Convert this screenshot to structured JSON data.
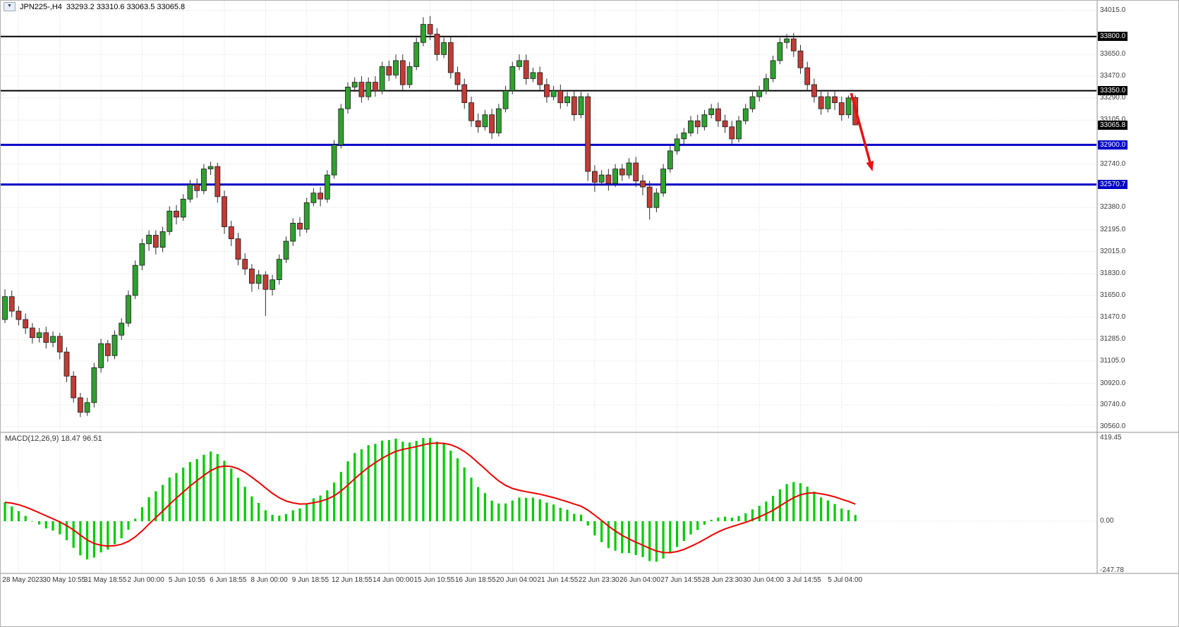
{
  "header": {
    "symbol": "JPN225-,H4",
    "ohlc": "33293.2 33310.6 33063.5 33065.8",
    "dropdown_icon": "▼"
  },
  "colors": {
    "bull": "#2EA12E",
    "bear": "#C23B35",
    "wick": "#2b2b2b",
    "body_stroke": "#1a1a1a",
    "grid": "#d9d9d9",
    "hline_black": "#000000",
    "hline_blue": "#0000C8",
    "macd_hist": "#00CC00",
    "macd_signal": "#F00000",
    "arrow": "#E81010",
    "axis_text": "#3c3c3c",
    "separator": "#8f8f8f"
  },
  "chart_data": [
    {
      "type": "candlestick",
      "symbol": "JPN225",
      "timeframe": "H4",
      "last_ohlc": {
        "open": 33293.2,
        "high": 33310.6,
        "low": 33063.5,
        "close": 33065.8
      },
      "ylim": [
        30560,
        34015
      ],
      "y_ticks": [
        "34015.0",
        "33650.0",
        "33470.0",
        "33290.0",
        "33105.0",
        "32740.0",
        "32380.0",
        "32195.0",
        "32015.0",
        "31830.0",
        "31650.0",
        "31470.0",
        "31285.0",
        "31105.0",
        "30920.0",
        "30740.0",
        "30560.0"
      ],
      "price_tags": [
        {
          "label": "33800.0",
          "value": 33800.0,
          "style": "black"
        },
        {
          "label": "33350.0",
          "value": 33350.0,
          "style": "black"
        },
        {
          "label": "33065.8",
          "value": 33065.8,
          "style": "black"
        },
        {
          "label": "32900.0",
          "value": 32900.0,
          "style": "blue"
        },
        {
          "label": "32570.7",
          "value": 32570.7,
          "style": "blue"
        }
      ],
      "hlines": [
        {
          "value": 33800.0,
          "color": "black",
          "width": 2
        },
        {
          "value": 33350.0,
          "color": "black",
          "width": 2
        },
        {
          "value": 32900.0,
          "color": "blue",
          "width": 3
        },
        {
          "value": 32570.7,
          "color": "blue",
          "width": 3
        }
      ],
      "x_labels": [
        {
          "bar": 2,
          "text": "28 May 2023"
        },
        {
          "bar": 8,
          "text": "30 May 10:55"
        },
        {
          "bar": 14,
          "text": "31 May 18:55"
        },
        {
          "bar": 20,
          "text": "2 Jun 00:00"
        },
        {
          "bar": 26,
          "text": "5 Jun 10:55"
        },
        {
          "bar": 32,
          "text": "6 Jun 18:55"
        },
        {
          "bar": 38,
          "text": "8 Jun 00:00"
        },
        {
          "bar": 44,
          "text": "9 Jun 18:55"
        },
        {
          "bar": 50,
          "text": "12 Jun 18:55"
        },
        {
          "bar": 56,
          "text": "14 Jun 00:00"
        },
        {
          "bar": 62,
          "text": "15 Jun 10:55"
        },
        {
          "bar": 68,
          "text": "16 Jun 18:55"
        },
        {
          "bar": 74,
          "text": "20 Jun 04:00"
        },
        {
          "bar": 80,
          "text": "21 Jun 14:55"
        },
        {
          "bar": 86,
          "text": "22 Jun 23:30"
        },
        {
          "bar": 92,
          "text": "26 Jun 04:00"
        },
        {
          "bar": 98,
          "text": "27 Jun 14:55"
        },
        {
          "bar": 104,
          "text": "28 Jun 23:30"
        },
        {
          "bar": 110,
          "text": "30 Jun 04:00"
        },
        {
          "bar": 116,
          "text": "3 Jul 14:55"
        },
        {
          "bar": 122,
          "text": "5 Jul 04:00"
        }
      ],
      "arrow": {
        "from_bar": 123.4,
        "from_price": 33330,
        "to_bar": 126.5,
        "to_price": 32680
      },
      "candles": [
        [
          31450,
          31700,
          31420,
          31640
        ],
        [
          31640,
          31690,
          31470,
          31520
        ],
        [
          31520,
          31560,
          31400,
          31450
        ],
        [
          31450,
          31500,
          31330,
          31380
        ],
        [
          31380,
          31420,
          31250,
          31300
        ],
        [
          31300,
          31380,
          31260,
          31340
        ],
        [
          31340,
          31390,
          31210,
          31260
        ],
        [
          31260,
          31350,
          31220,
          31310
        ],
        [
          31310,
          31340,
          31120,
          31180
        ],
        [
          31180,
          31220,
          30930,
          30980
        ],
        [
          30980,
          31020,
          30760,
          30800
        ],
        [
          30800,
          30840,
          30640,
          30680
        ],
        [
          30680,
          30800,
          30650,
          30760
        ],
        [
          30760,
          31090,
          30720,
          31050
        ],
        [
          31050,
          31290,
          31010,
          31250
        ],
        [
          31250,
          31280,
          31100,
          31150
        ],
        [
          31150,
          31360,
          31120,
          31320
        ],
        [
          31320,
          31460,
          31280,
          31420
        ],
        [
          31420,
          31690,
          31390,
          31650
        ],
        [
          31650,
          31940,
          31620,
          31900
        ],
        [
          31900,
          32120,
          31860,
          32080
        ],
        [
          32080,
          32190,
          32020,
          32150
        ],
        [
          32150,
          32190,
          31990,
          32050
        ],
        [
          32050,
          32220,
          32010,
          32180
        ],
        [
          32180,
          32390,
          32150,
          32350
        ],
        [
          32350,
          32400,
          32240,
          32300
        ],
        [
          32300,
          32490,
          32270,
          32450
        ],
        [
          32450,
          32610,
          32420,
          32570
        ],
        [
          32570,
          32620,
          32460,
          32520
        ],
        [
          32520,
          32740,
          32490,
          32700
        ],
        [
          32700,
          32760,
          32650,
          32720
        ],
        [
          32720,
          32750,
          32420,
          32470
        ],
        [
          32470,
          32520,
          32160,
          32220
        ],
        [
          32220,
          32270,
          32060,
          32120
        ],
        [
          32120,
          32170,
          31900,
          31950
        ],
        [
          31950,
          32000,
          31820,
          31870
        ],
        [
          31870,
          31910,
          31680,
          31750
        ],
        [
          31750,
          31860,
          31700,
          31820
        ],
        [
          31820,
          31850,
          31480,
          31700
        ],
        [
          31700,
          31820,
          31650,
          31780
        ],
        [
          31780,
          31990,
          31740,
          31950
        ],
        [
          31950,
          32140,
          31920,
          32100
        ],
        [
          32100,
          32290,
          32060,
          32250
        ],
        [
          32250,
          32300,
          32140,
          32200
        ],
        [
          32200,
          32460,
          32170,
          32420
        ],
        [
          32420,
          32540,
          32390,
          32500
        ],
        [
          32500,
          32550,
          32390,
          32450
        ],
        [
          32450,
          32690,
          32420,
          32650
        ],
        [
          32650,
          32940,
          32620,
          32900
        ],
        [
          32900,
          33240,
          32870,
          33200
        ],
        [
          33200,
          33420,
          33160,
          33380
        ],
        [
          33380,
          33460,
          33340,
          33420
        ],
        [
          33420,
          33470,
          33250,
          33300
        ],
        [
          33300,
          33460,
          33270,
          33420
        ],
        [
          33420,
          33470,
          33300,
          33350
        ],
        [
          33350,
          33590,
          33320,
          33550
        ],
        [
          33550,
          33600,
          33430,
          33480
        ],
        [
          33480,
          33650,
          33450,
          33600
        ],
        [
          33600,
          33650,
          33350,
          33400
        ],
        [
          33400,
          33590,
          33370,
          33550
        ],
        [
          33550,
          33790,
          33520,
          33750
        ],
        [
          33750,
          33960,
          33720,
          33900
        ],
        [
          33900,
          33970,
          33770,
          33820
        ],
        [
          33820,
          33870,
          33600,
          33650
        ],
        [
          33650,
          33790,
          33620,
          33750
        ],
        [
          33750,
          33800,
          33450,
          33500
        ],
        [
          33500,
          33550,
          33350,
          33400
        ],
        [
          33400,
          33450,
          33200,
          33250
        ],
        [
          33250,
          33300,
          33050,
          33100
        ],
        [
          33100,
          33160,
          33000,
          33050
        ],
        [
          33050,
          33190,
          33020,
          33150
        ],
        [
          33150,
          33200,
          32950,
          33000
        ],
        [
          33000,
          33240,
          32970,
          33200
        ],
        [
          33200,
          33390,
          33170,
          33350
        ],
        [
          33350,
          33590,
          33320,
          33550
        ],
        [
          33550,
          33650,
          33520,
          33600
        ],
        [
          33600,
          33650,
          33400,
          33450
        ],
        [
          33450,
          33540,
          33420,
          33500
        ],
        [
          33500,
          33550,
          33350,
          33400
        ],
        [
          33400,
          33450,
          33250,
          33300
        ],
        [
          33300,
          33390,
          33270,
          33350
        ],
        [
          33350,
          33400,
          33200,
          33250
        ],
        [
          33250,
          33340,
          33220,
          33300
        ],
        [
          33300,
          33350,
          33100,
          33150
        ],
        [
          33150,
          33340,
          33120,
          33300
        ],
        [
          33300,
          33330,
          32600,
          32680
        ],
        [
          32680,
          32730,
          32510,
          32590
        ],
        [
          32590,
          32690,
          32560,
          32650
        ],
        [
          32650,
          32700,
          32520,
          32580
        ],
        [
          32580,
          32740,
          32550,
          32700
        ],
        [
          32700,
          32740,
          32600,
          32650
        ],
        [
          32650,
          32790,
          32620,
          32750
        ],
        [
          32750,
          32800,
          32550,
          32600
        ],
        [
          32600,
          32650,
          32480,
          32550
        ],
        [
          32550,
          32600,
          32280,
          32380
        ],
        [
          32380,
          32540,
          32340,
          32500
        ],
        [
          32500,
          32740,
          32470,
          32700
        ],
        [
          32700,
          32890,
          32670,
          32850
        ],
        [
          32850,
          32990,
          32820,
          32950
        ],
        [
          32950,
          33040,
          32900,
          33000
        ],
        [
          33000,
          33140,
          32970,
          33100
        ],
        [
          33100,
          33150,
          32990,
          33050
        ],
        [
          33050,
          33190,
          33020,
          33150
        ],
        [
          33150,
          33240,
          33120,
          33200
        ],
        [
          33200,
          33250,
          33050,
          33100
        ],
        [
          33100,
          33150,
          33000,
          33050
        ],
        [
          33050,
          33100,
          32900,
          32950
        ],
        [
          32950,
          33140,
          32920,
          33100
        ],
        [
          33100,
          33240,
          33070,
          33200
        ],
        [
          33200,
          33340,
          33170,
          33300
        ],
        [
          33300,
          33390,
          33260,
          33350
        ],
        [
          33350,
          33490,
          33320,
          33450
        ],
        [
          33450,
          33640,
          33420,
          33600
        ],
        [
          33600,
          33790,
          33570,
          33750
        ],
        [
          33750,
          33820,
          33700,
          33780
        ],
        [
          33780,
          33830,
          33630,
          33680
        ],
        [
          33680,
          33730,
          33490,
          33540
        ],
        [
          33540,
          33590,
          33350,
          33400
        ],
        [
          33400,
          33450,
          33250,
          33300
        ],
        [
          33300,
          33350,
          33150,
          33200
        ],
        [
          33200,
          33340,
          33170,
          33300
        ],
        [
          33300,
          33350,
          33190,
          33250
        ],
        [
          33250,
          33300,
          33100,
          33150
        ],
        [
          33150,
          33310,
          33120,
          33290
        ],
        [
          33293.2,
          33310.6,
          33063.5,
          33065.8
        ]
      ]
    },
    {
      "type": "macd",
      "label": "MACD(12,26,9) 18.47 96.51",
      "name": "MACD",
      "params": [
        12,
        26,
        9
      ],
      "macd_value": 18.47,
      "signal_value": 96.51,
      "y_ticks": [
        "419.45",
        "0.00",
        "-247.78"
      ],
      "scale_max": 419.45
    }
  ]
}
